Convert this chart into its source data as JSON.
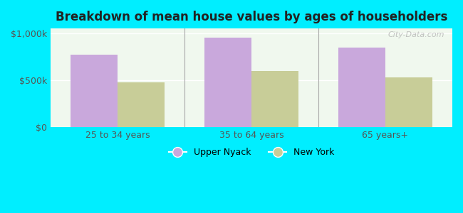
{
  "title": "Breakdown of mean house values by ages of householders",
  "categories": [
    "25 to 34 years",
    "35 to 64 years",
    "65 years+"
  ],
  "upper_nyack": [
    775000,
    950000,
    850000
  ],
  "new_york": [
    480000,
    600000,
    530000
  ],
  "upper_nyack_color": "#c9a8dc",
  "new_york_color": "#c8cd98",
  "background_color": "#00eeff",
  "plot_bg_color": "#f0f8ee",
  "ylim": [
    0,
    1050000
  ],
  "yticks": [
    0,
    500000,
    1000000
  ],
  "ytick_labels": [
    "$0",
    "$500k",
    "$1,000k"
  ],
  "bar_width": 0.35,
  "legend_labels": [
    "Upper Nyack",
    "New York"
  ],
  "watermark": "City-Data.com"
}
